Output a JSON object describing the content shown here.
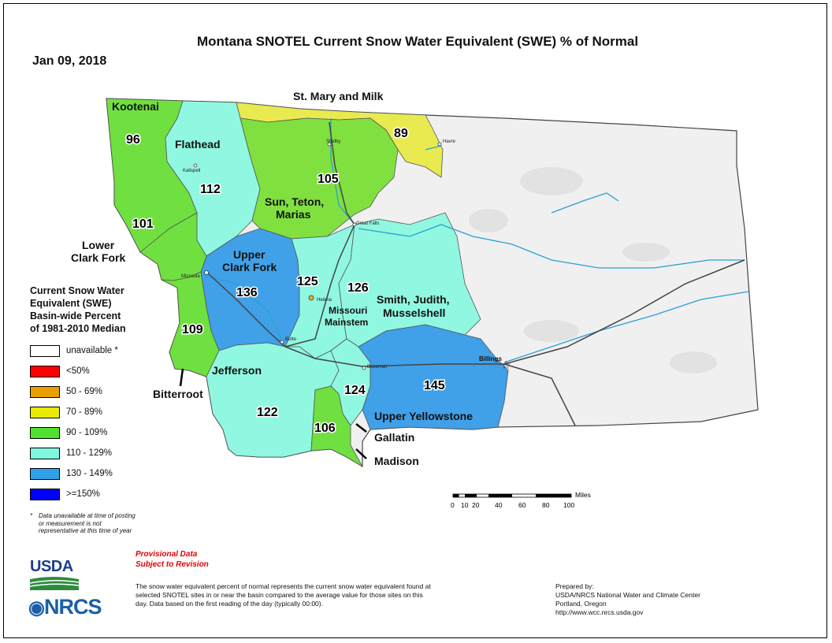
{
  "title": "Montana SNOTEL Current Snow Water Equivalent (SWE) % of Normal",
  "date": "Jan 09, 2018",
  "basins": [
    {
      "name": "Kootenai",
      "value": "96",
      "color": "#70e040"
    },
    {
      "name": "Flathead",
      "value": "112",
      "color": "#90f8e0"
    },
    {
      "name": "St. Mary and Milk",
      "value": "89",
      "color": "#e8ea50"
    },
    {
      "name": "Sun, Teton, Marias",
      "value": "105",
      "color": "#80e040"
    },
    {
      "name": "Lower Clark Fork",
      "value": "101",
      "color": "#70e040"
    },
    {
      "name": "Upper Clark Fork",
      "value": "136",
      "color": "#40a0e8"
    },
    {
      "name": "Missouri Mainstem",
      "value": "125",
      "color": "#90f8e0"
    },
    {
      "name": "Smith, Judith, Musselshell",
      "value": "126",
      "color": "#90f8e0"
    },
    {
      "name": "Bitterroot",
      "value": "109",
      "color": "#70e040"
    },
    {
      "name": "Jefferson",
      "value": "122",
      "color": "#90f8e0"
    },
    {
      "name": "Gallatin",
      "value": "124",
      "color": "#90f8e0"
    },
    {
      "name": "Madison",
      "value": "106",
      "color": "#70e040"
    },
    {
      "name": "Upper Yellowstone",
      "value": "145",
      "color": "#40a0e8"
    }
  ],
  "cities": [
    "Shelby",
    "Havre",
    "Kalispell",
    "Great Falls",
    "Missoula",
    "Helena",
    "Butte",
    "Bozeman",
    "Billings"
  ],
  "legend": {
    "title_lines": [
      "Current Snow Water",
      "Equivalent (SWE)",
      "Basin-wide Percent",
      "of 1981-2010 Median"
    ],
    "items": [
      {
        "label": "unavailable *",
        "color": "#ffffff"
      },
      {
        "label": "<50%",
        "color": "#ff0000"
      },
      {
        "label": "50 - 69%",
        "color": "#e8a000"
      },
      {
        "label": "70 - 89%",
        "color": "#e8ea00"
      },
      {
        "label": "90 - 109%",
        "color": "#50e030"
      },
      {
        "label": "110 - 129%",
        "color": "#80f8e0"
      },
      {
        "label": "130 - 149%",
        "color": "#30a0e8"
      },
      {
        "label": ">=150%",
        "color": "#0000ff"
      }
    ]
  },
  "footnote": {
    "asterisk": "*",
    "text": "Data unavailable at time of posting or measurement is not representative at this time of year"
  },
  "provisional": [
    "Provisional Data",
    "Subject to Revision"
  ],
  "description": "The snow water equivalent percent of normal represents the current snow water equivalent found at selected SNOTEL sites in or near the basin compared to the average value for those sites on this day. Data based on the first reading of the day (typically 00:00).",
  "prepared_by": [
    "Prepared by:",
    "USDA/NRCS National Water and Climate Center",
    "Portland, Oregon",
    "http://www.wcc.nrcs.usda.gov"
  ],
  "logos": {
    "usda": "USDA",
    "nrcs": "NRCS"
  },
  "scale": {
    "unit": "Miles",
    "ticks": [
      "0",
      "10",
      "20",
      "40",
      "60",
      "80",
      "100"
    ]
  }
}
